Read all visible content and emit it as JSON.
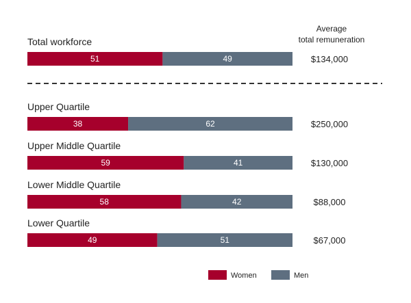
{
  "header": {
    "avg_line1": "Average",
    "avg_line2": "total remuneration"
  },
  "colors": {
    "women": "#a6002c",
    "men": "#5e6f80",
    "divider": "#333333"
  },
  "legend": [
    {
      "label": "Women",
      "color": "#a6002c"
    },
    {
      "label": "Men",
      "color": "#5e6f80"
    }
  ],
  "chart_data": {
    "type": "bar",
    "orientation": "horizontal",
    "stacked": true,
    "xlim": [
      0,
      100
    ],
    "categories": [
      "Total workforce",
      "Upper Quartile",
      "Upper Middle Quartile",
      "Lower Middle Quartile",
      "Lower Quartile"
    ],
    "series": [
      {
        "name": "Women",
        "values": [
          51,
          38,
          59,
          58,
          49
        ]
      },
      {
        "name": "Men",
        "values": [
          49,
          62,
          41,
          42,
          51
        ]
      }
    ],
    "remuneration": [
      "$134,000",
      "$250,000",
      "$130,000",
      "$88,000",
      "$67,000"
    ],
    "legend_position": "bottom-right",
    "grid": false
  }
}
